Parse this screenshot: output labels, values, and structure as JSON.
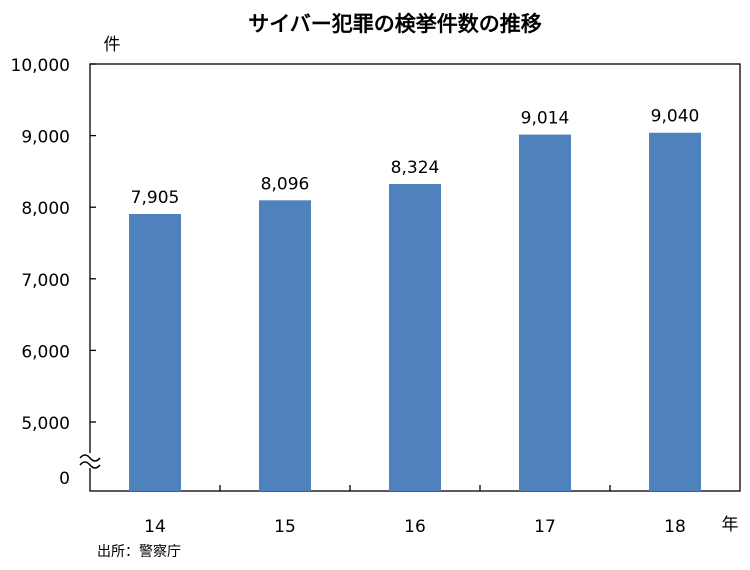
{
  "chart_data": {
    "type": "bar",
    "title": "サイバー犯罪の検挙件数の推移",
    "ylabel": "件",
    "xlabel": "年",
    "categories": [
      "14",
      "15",
      "16",
      "17",
      "18"
    ],
    "values": [
      7905,
      8096,
      8324,
      9014,
      9040
    ],
    "value_labels": [
      "7,905",
      "8,096",
      "8,324",
      "9,014",
      "9,040"
    ],
    "yticks": [
      5000,
      6000,
      7000,
      8000,
      9000,
      10000
    ],
    "ytick_labels": [
      "5,000",
      "6,000",
      "7,000",
      "8,000",
      "9,000",
      "10,000"
    ],
    "ylim": [
      4000,
      10000
    ],
    "axis_break": true,
    "axis_break_label": "0",
    "grid": false,
    "bar_color": "#4F81BD",
    "source": "出所：警察庁"
  }
}
